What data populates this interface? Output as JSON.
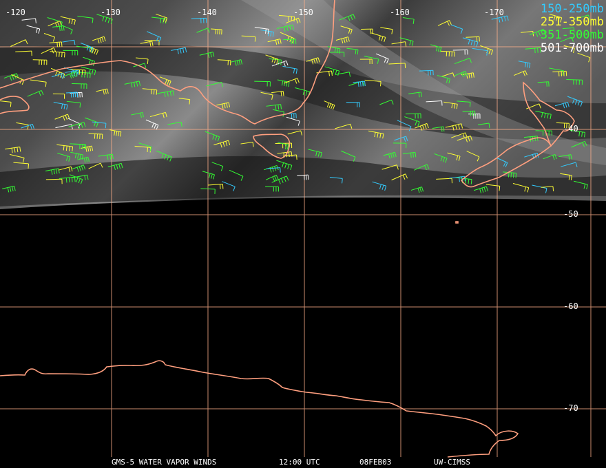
{
  "lon_labels": [
    "-120",
    "-130",
    "-140",
    "-150",
    "-160",
    "-170"
  ],
  "lat_labels": [
    "-40",
    "-50",
    "-60",
    "-70"
  ],
  "legend": [
    {
      "label": "150-250mb",
      "color": "#33ccff"
    },
    {
      "label": "251-350mb",
      "color": "#ffff33"
    },
    {
      "label": "351-500mb",
      "color": "#33ff33"
    },
    {
      "label": "501-700mb",
      "color": "#ffffff"
    }
  ],
  "footer": {
    "satellite": "GMS-5 WATER VAPOR WINDS",
    "time": "12:00 UTC",
    "date": "08FEB03",
    "credit": "UW-CIMSS"
  },
  "colors": {
    "coast": "#ff9f7f",
    "grid": "#ffb08a",
    "background": "#000000"
  }
}
